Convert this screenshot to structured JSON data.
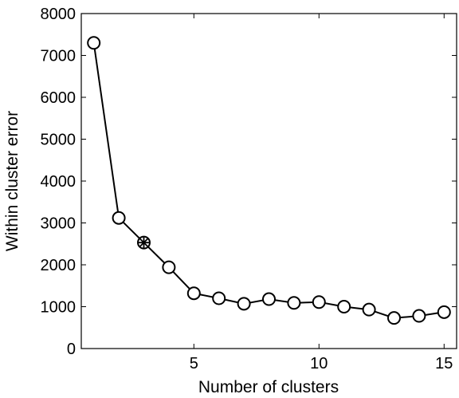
{
  "chart_data": {
    "type": "line",
    "title": "",
    "xlabel": "Number of clusters",
    "ylabel": "Within cluster error",
    "xlim": [
      0.5,
      15.5
    ],
    "ylim": [
      0,
      8000
    ],
    "x_ticks": [
      5,
      10,
      15
    ],
    "y_ticks": [
      0,
      1000,
      2000,
      3000,
      4000,
      5000,
      6000,
      7000,
      8000
    ],
    "grid": false,
    "legend": "none",
    "series": [
      {
        "x": [
          1,
          2,
          3,
          4,
          5,
          6,
          7,
          8,
          9,
          10,
          11,
          12,
          13,
          14,
          15
        ],
        "y": [
          7300,
          3120,
          2530,
          1940,
          1320,
          1200,
          1070,
          1180,
          1090,
          1110,
          1000,
          930,
          730,
          780,
          870
        ],
        "marker": "circle",
        "color": "#000000",
        "highlight_index": 2
      }
    ]
  }
}
